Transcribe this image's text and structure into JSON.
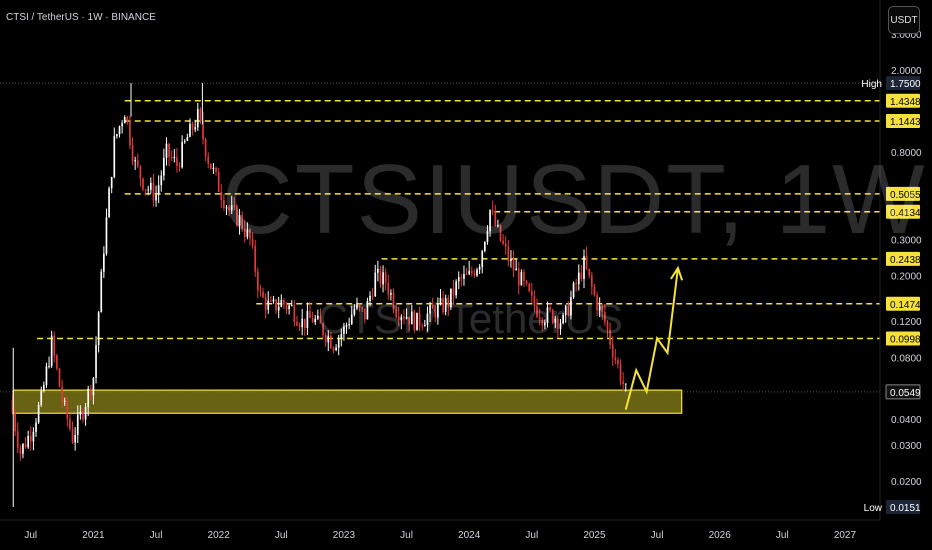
{
  "header": {
    "title": "CTSI / TetherUS · 1W · BINANCE"
  },
  "currency_button": {
    "label": "USDT"
  },
  "watermark": {
    "main": "CTSIUSDT, 1W",
    "sub": "CTSI / TetherUS"
  },
  "colors": {
    "level_line": "#f5e13a",
    "zone_fill": "#8a8418",
    "candle_up": "#ffffff",
    "candle_down": "#e23a3a",
    "arrow": "#f5e13a",
    "background": "#000000",
    "axis_text": "#d1d4dc"
  },
  "chart_data": {
    "type": "candlestick",
    "scale": "log",
    "ylim": [
      0.0151,
      3.0
    ],
    "x_ticks": [
      "Jul",
      "2021",
      "Jul",
      "2022",
      "Jul",
      "2023",
      "Jul",
      "2024",
      "Jul",
      "2025",
      "Jul",
      "2026",
      "Jul",
      "2027"
    ],
    "y_ticks": [
      "3.0000",
      "2.0000",
      "0.8000",
      "0.3000",
      "0.2000",
      "0.1200",
      "0.0800",
      "0.0400",
      "0.0300",
      "0.0200"
    ],
    "high": {
      "label": "High",
      "value": "1.7500"
    },
    "low": {
      "label": "Low",
      "value": "0.0151"
    },
    "current_price": "0.0549",
    "levels": [
      "1.4348",
      "1.1443",
      "0.5055",
      "0.4134",
      "0.2438",
      "0.1474",
      "0.0998"
    ],
    "support_zone": [
      0.0432,
      0.056
    ],
    "price_path": [
      [
        "2020-05",
        0.05
      ],
      [
        "2020-06",
        0.028
      ],
      [
        "2020-07",
        0.035
      ],
      [
        "2020-08",
        0.05
      ],
      [
        "2020-09",
        0.095
      ],
      [
        "2020-10",
        0.05
      ],
      [
        "2020-11",
        0.033
      ],
      [
        "2020-12",
        0.045
      ],
      [
        "2021-01",
        0.065
      ],
      [
        "2021-02",
        0.28
      ],
      [
        "2021-03",
        0.9
      ],
      [
        "2021-04",
        1.3
      ],
      [
        "2021-05",
        0.7
      ],
      [
        "2021-06",
        0.55
      ],
      [
        "2021-07",
        0.5
      ],
      [
        "2021-08",
        0.8
      ],
      [
        "2021-09",
        0.7
      ],
      [
        "2021-10",
        0.95
      ],
      [
        "2021-11",
        1.2
      ],
      [
        "2021-12",
        0.75
      ],
      [
        "2022-01",
        0.55
      ],
      [
        "2022-02",
        0.42
      ],
      [
        "2022-03",
        0.38
      ],
      [
        "2022-04",
        0.3
      ],
      [
        "2022-05",
        0.16
      ],
      [
        "2022-06",
        0.14
      ],
      [
        "2022-07",
        0.15
      ],
      [
        "2022-08",
        0.14
      ],
      [
        "2022-09",
        0.12
      ],
      [
        "2022-10",
        0.125
      ],
      [
        "2022-11",
        0.11
      ],
      [
        "2022-12",
        0.095
      ],
      [
        "2023-01",
        0.11
      ],
      [
        "2023-02",
        0.14
      ],
      [
        "2023-03",
        0.13
      ],
      [
        "2023-04",
        0.2
      ],
      [
        "2023-05",
        0.19
      ],
      [
        "2023-06",
        0.14
      ],
      [
        "2023-07",
        0.13
      ],
      [
        "2023-08",
        0.12
      ],
      [
        "2023-09",
        0.13
      ],
      [
        "2023-10",
        0.14
      ],
      [
        "2023-11",
        0.15
      ],
      [
        "2023-12",
        0.19
      ],
      [
        "2024-01",
        0.2
      ],
      [
        "2024-02",
        0.24
      ],
      [
        "2024-03",
        0.42
      ],
      [
        "2024-04",
        0.3
      ],
      [
        "2024-05",
        0.23
      ],
      [
        "2024-06",
        0.19
      ],
      [
        "2024-07",
        0.15
      ],
      [
        "2024-08",
        0.13
      ],
      [
        "2024-09",
        0.13
      ],
      [
        "2024-10",
        0.12
      ],
      [
        "2024-11",
        0.17
      ],
      [
        "2024-12",
        0.23
      ],
      [
        "2025-01",
        0.16
      ],
      [
        "2025-02",
        0.12
      ],
      [
        "2025-03",
        0.08
      ],
      [
        "2025-04",
        0.055
      ]
    ],
    "projection": [
      [
        "2025-04",
        0.045
      ],
      [
        "2025-05",
        0.07
      ],
      [
        "2025-06",
        0.055
      ],
      [
        "2025-07",
        0.1
      ],
      [
        "2025-08",
        0.085
      ],
      [
        "2025-09",
        0.22
      ]
    ]
  }
}
